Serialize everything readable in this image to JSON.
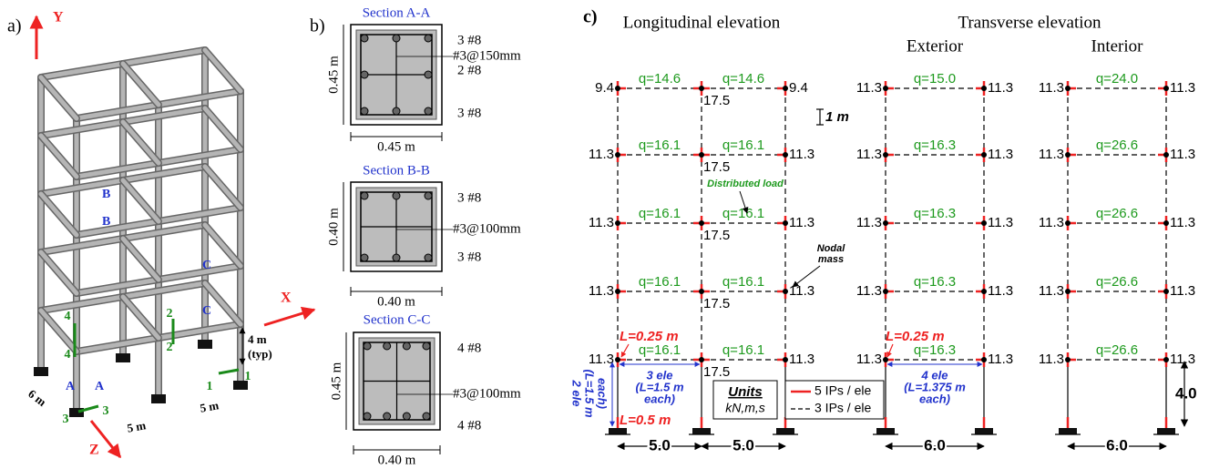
{
  "panel_a": {
    "label": "a)",
    "axes": {
      "y": "Y",
      "x": "X",
      "z": "Z"
    },
    "section_marks": [
      "B",
      "B",
      "C",
      "C",
      "A",
      "A"
    ],
    "frame_ids": [
      "4",
      "4",
      "2",
      "2",
      "1",
      "1",
      "3",
      "3"
    ],
    "dims": {
      "depth": "6 m",
      "bay1": "5 m",
      "bay2": "5 m",
      "height": "4 m",
      "height_note": "(typ)"
    }
  },
  "panel_b": {
    "label": "b)",
    "sections": [
      {
        "title": "Section A-A",
        "height": "0.45 m",
        "width": "0.45 m",
        "rebar": [
          "3 #8",
          "#3@150mm",
          "2 #8",
          "3 #8"
        ]
      },
      {
        "title": "Section B-B",
        "height": "0.40 m",
        "width": "0.40 m",
        "rebar": [
          "3 #8",
          "#3@100mm",
          "3 #8"
        ]
      },
      {
        "title": "Section C-C",
        "height": "0.45 m",
        "width": "0.40 m",
        "rebar": [
          "4 #8",
          "#3@100mm",
          "4 #8"
        ]
      }
    ]
  },
  "panel_c": {
    "label": "c)",
    "longitudinal": {
      "title": "Longitudinal elevation",
      "spans": [
        "5.0",
        "5.0"
      ],
      "floors": [
        {
          "left": "9.4",
          "loads": [
            "q=14.6",
            "q=14.6"
          ],
          "center": "17.5",
          "right": "9.4"
        },
        {
          "left": "11.3",
          "loads": [
            "q=16.1",
            "q=16.1"
          ],
          "center": "17.5",
          "right": "11.3"
        },
        {
          "left": "11.3",
          "loads": [
            "q=16.1",
            "q=16.1"
          ],
          "center": "17.5",
          "right": "11.3"
        },
        {
          "left": "11.3",
          "loads": [
            "q=16.1",
            "q=16.1"
          ],
          "center": "17.5",
          "right": "11.3"
        },
        {
          "left": "11.3",
          "loads": [
            "q=16.1",
            "q=16.1"
          ],
          "center": "17.5",
          "right": "11.3"
        }
      ]
    },
    "transverse": {
      "title": "Transverse elevation",
      "exterior": {
        "title": "Exterior",
        "span": "6.0",
        "floors": [
          {
            "left": "11.3",
            "load": "q=15.0",
            "right": "11.3"
          },
          {
            "left": "11.3",
            "load": "q=16.3",
            "right": "11.3"
          },
          {
            "left": "11.3",
            "load": "q=16.3",
            "right": "11.3"
          },
          {
            "left": "11.3",
            "load": "q=16.3",
            "right": "11.3"
          },
          {
            "left": "11.3",
            "load": "q=16.3",
            "right": "11.3"
          }
        ]
      },
      "interior": {
        "title": "Interior",
        "span": "6.0",
        "story_height": "4.0",
        "floors": [
          {
            "left": "11.3",
            "load": "q=24.0",
            "right": "11.3"
          },
          {
            "left": "11.3",
            "load": "q=26.6",
            "right": "11.3"
          },
          {
            "left": "11.3",
            "load": "q=26.6",
            "right": "11.3"
          },
          {
            "left": "11.3",
            "load": "q=26.6",
            "right": "11.3"
          },
          {
            "left": "11.3",
            "load": "q=26.6",
            "right": "11.3"
          }
        ]
      }
    },
    "annotations": {
      "scale": "1 m",
      "distributed_load": "Distributed load",
      "nodal_mass": [
        "Nodal",
        "mass"
      ],
      "beam_end_long": "L=0.25 m",
      "beam_end_trans": "L=0.25 m",
      "long_beam_ele": [
        "3 ele",
        "(L=1.5 m",
        "each)"
      ],
      "trans_beam_ele": [
        "4 ele",
        "(L=1.375 m",
        "each)"
      ],
      "column_ele": [
        "2 ele",
        "(L=1.5 m",
        "each)"
      ],
      "column_end": "L=0.5 m"
    },
    "units": {
      "title": "Units",
      "value": "kN,m,s"
    },
    "legend": [
      "5 IPs / ele",
      "3 IPs / ele"
    ]
  }
}
